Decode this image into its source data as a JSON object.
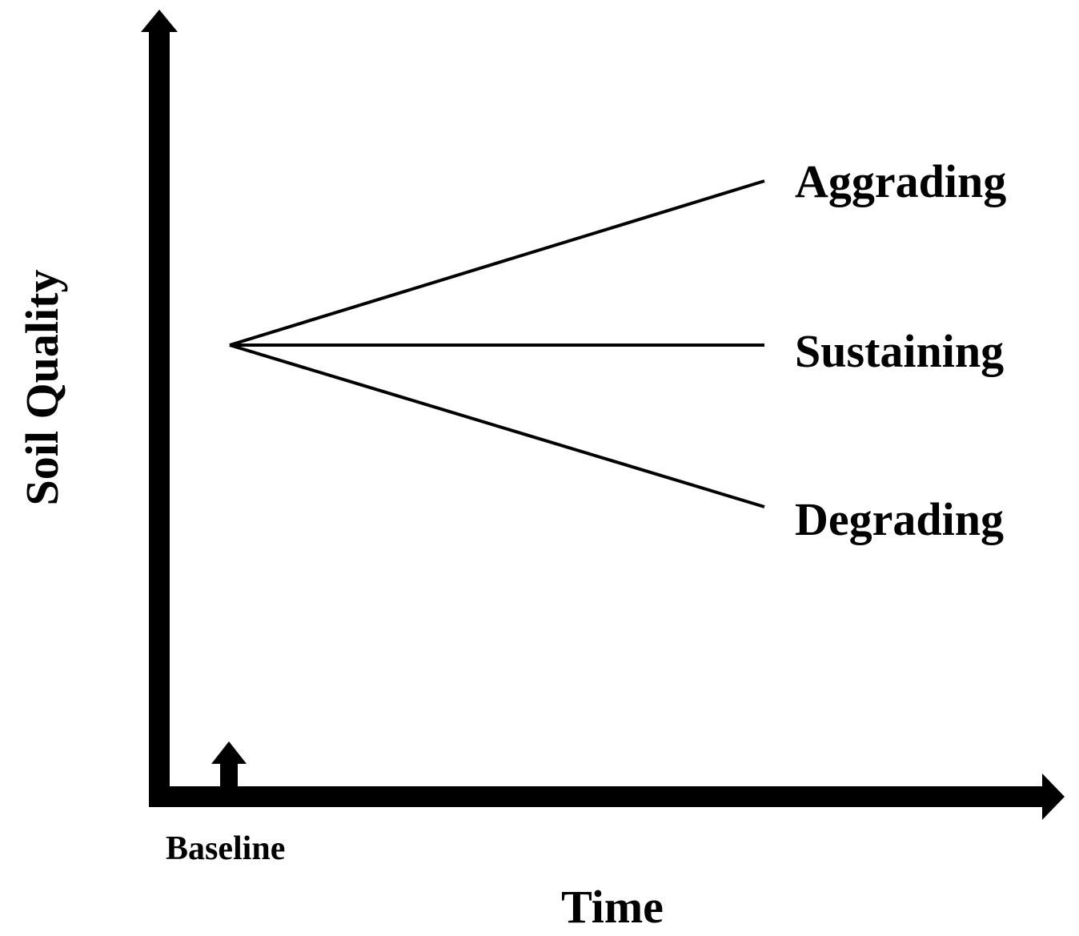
{
  "diagram": {
    "axes": {
      "x_label": "Time",
      "y_label": "Soil Quality",
      "baseline_label": "Baseline"
    },
    "trajectories": [
      {
        "id": "aggrading",
        "label": "Aggrading",
        "direction": "up"
      },
      {
        "id": "sustaining",
        "label": "Sustaining",
        "direction": "flat"
      },
      {
        "id": "degrading",
        "label": "Degrading",
        "direction": "down"
      }
    ],
    "colors": {
      "stroke": "#000000",
      "background": "#ffffff"
    }
  }
}
